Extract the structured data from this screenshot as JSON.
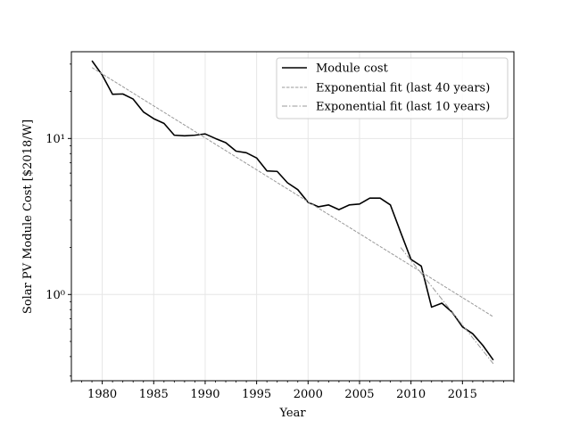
{
  "chart_data": {
    "type": "line",
    "xlabel": "Year",
    "ylabel": "Solar PV Module Cost [$2018/W]",
    "xlim": [
      1977,
      2020
    ],
    "ylim": [
      0.28,
      36
    ],
    "yscale": "log",
    "grid": true,
    "legend_position": "top-right",
    "x_ticks": [
      1980,
      1985,
      1990,
      1995,
      2000,
      2005,
      2010,
      2015
    ],
    "x_tick_labels": [
      "1980",
      "1985",
      "1990",
      "1995",
      "2000",
      "2005",
      "2010",
      "2015"
    ],
    "y_ticks": [
      1,
      10
    ],
    "y_tick_labels": [
      "10⁰",
      "10¹"
    ],
    "colors": {
      "module_cost": "#000000",
      "fit_40": "#999999",
      "fit_10": "#999999",
      "grid": "#e6e6e6"
    },
    "series": [
      {
        "name": "Module cost",
        "style": "solid",
        "x": [
          1979,
          1980,
          1981,
          1982,
          1983,
          1984,
          1985,
          1986,
          1987,
          1988,
          1989,
          1990,
          1991,
          1992,
          1993,
          1994,
          1995,
          1996,
          1997,
          1998,
          1999,
          2000,
          2001,
          2002,
          2003,
          2004,
          2005,
          2006,
          2007,
          2008,
          2009,
          2010,
          2011,
          2012,
          2013,
          2014,
          2015,
          2016,
          2017,
          2018
        ],
        "y": [
          31.5,
          25.5,
          19.2,
          19.3,
          17.9,
          14.8,
          13.4,
          12.5,
          10.5,
          10.4,
          10.5,
          10.7,
          10.0,
          9.4,
          8.3,
          8.1,
          7.5,
          6.2,
          6.15,
          5.2,
          4.7,
          3.9,
          3.65,
          3.75,
          3.5,
          3.75,
          3.8,
          4.15,
          4.15,
          3.75,
          2.5,
          1.68,
          1.52,
          0.83,
          0.88,
          0.77,
          0.62,
          0.56,
          0.47,
          0.38
        ]
      },
      {
        "name": "Exponential fit (last 40 years)",
        "style": "dashed",
        "x": [
          1979,
          2018
        ],
        "y": [
          28.5,
          0.72
        ]
      },
      {
        "name": "Exponential fit (last 10 years)",
        "style": "dashdot",
        "x": [
          2009,
          2018
        ],
        "y": [
          2.0,
          0.36
        ]
      }
    ]
  }
}
